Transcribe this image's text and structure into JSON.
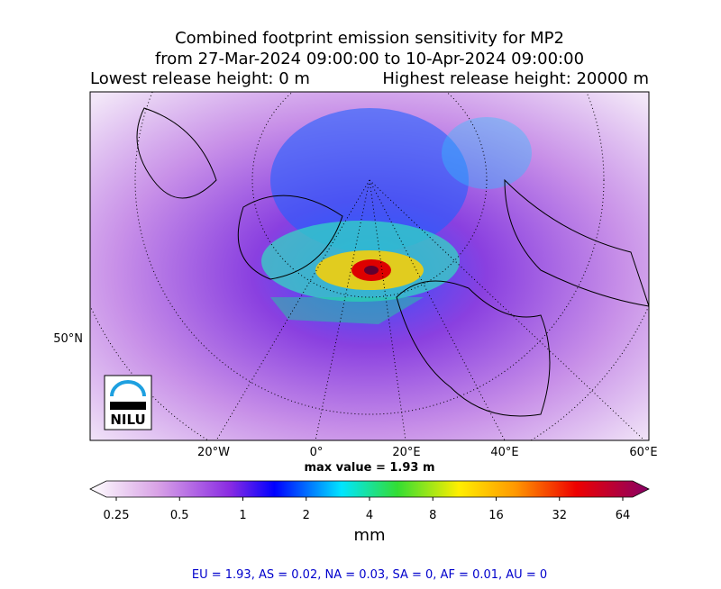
{
  "title": {
    "line1": "Combined footprint emission sensitivity for MP2",
    "line2": "from 27-Mar-2024 09:00:00 to 10-Apr-2024 09:00:00",
    "lowest": "Lowest release height: 0 m",
    "highest": "Highest release height: 20000 m"
  },
  "map": {
    "lon_labels": [
      "20°W",
      "0°",
      "20°E",
      "40°E",
      "60°E"
    ],
    "lat_labels": [
      "50°N"
    ],
    "logo": "NILU",
    "max_value": "max value = 1.93 m"
  },
  "colorbar": {
    "ticks": [
      0.25,
      0.5,
      1,
      2,
      4,
      8,
      16,
      32,
      64
    ],
    "label": "mm",
    "log": true
  },
  "summary": "EU = 1.93,  AS = 0.02,  NA = 0.03,  SA = 0,  AF = 0.01,  AU = 0"
}
